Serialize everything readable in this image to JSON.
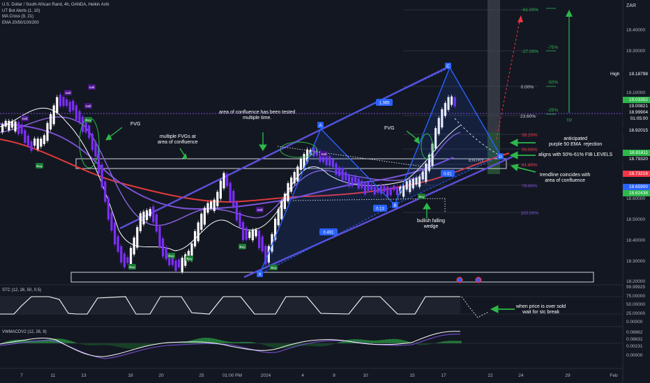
{
  "legend": {
    "symbol": "U.S. Dollar / South African Rand, 4h, OANDA, Heikin Ashi",
    "indicators": [
      "UT Bot Alerts (1, 10)",
      "MA Cross (9, 21)",
      "EMA 20/50/100/200"
    ]
  },
  "stc": {
    "label": "STC (12, 26, 50, 0.5)",
    "ticks": [
      "99.99925",
      "75.00000",
      "50.00000",
      "25.00000",
      "0.00000"
    ]
  },
  "vwmacd": {
    "label": "VWMACDV2 (12, 26, 9)",
    "ticks": [
      "0.08862",
      "0.08631",
      "0.00231",
      "0.00000"
    ]
  },
  "currency": "ZAR",
  "price_axis": [
    "19.40000",
    "19.30000",
    "19.10000",
    "18.60000",
    "18.50000",
    "18.40000",
    "18.30000",
    "18.20000"
  ],
  "price_tags": {
    "high_label": "High",
    "high_value": "19.18798",
    "t1": "19.03352",
    "t2": "19.00821",
    "t3": "18.99904",
    "t4": "01:05:00",
    "t5": "18.92015",
    "t6": "18.81811",
    "t7": "18.79320",
    "t8": "18.73216",
    "t9": "18.65900",
    "t10": "18.62438"
  },
  "time_axis": [
    "7",
    "11",
    "13",
    "18",
    "20",
    "25",
    "01:00 PM",
    "2024",
    "4",
    "8",
    "10",
    "15",
    "17",
    "22",
    "24",
    "29",
    "Feb"
  ],
  "fib_levels": [
    "-61.00%",
    "-27.00%",
    "0.00%",
    "23.60%",
    "38.20%",
    "50.00%",
    "61.80%",
    "78.60%",
    "100.00%"
  ],
  "target_levels": [
    "-75%",
    "-50%",
    "-25%",
    "TP"
  ],
  "pattern_points": [
    "X",
    "A",
    "B",
    "C",
    "D"
  ],
  "ratios": [
    "0.491",
    "0.13",
    "0.61",
    "1.365"
  ],
  "entry_label": "ENTRY",
  "signals": {
    "sell": "Sell",
    "buy": "Buy"
  },
  "annotations": {
    "fvg_left": "FVG",
    "fvgs_multi": "multiple FVGs at\narea of confluence",
    "confluence_tested": "area of confluence has been tested\nmultiple time.",
    "fvg_right": "FVG",
    "wedge": "bullish falling\nwedge",
    "ema_rejection": "anticipated\npurple 50 EMA  rejection",
    "fib_align": "aligns with 50%-61% FIB LEVELS",
    "trendline": "trendline coincides with\narea of confluence",
    "stc_note": "when price is over sold\nwait for stc break"
  },
  "colors": {
    "background": "#131722",
    "bull": "#ffffff",
    "bear": "#7b2ff7",
    "ema_red": "#e03a3a",
    "ema_purple": "#7b52d6",
    "channel": "#5b4fd6",
    "harmonic": "#2962ff",
    "green_arrow": "#2db84a",
    "fib_red": "#f23645",
    "stc_line": "#ffffff"
  }
}
